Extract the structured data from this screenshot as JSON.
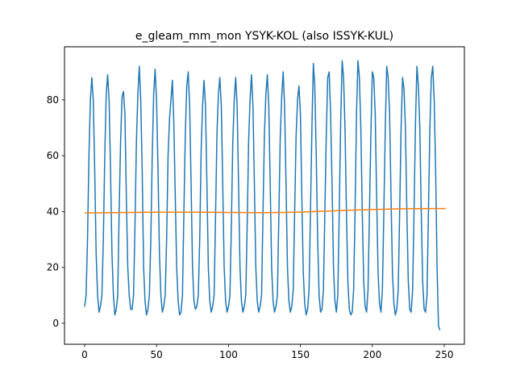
{
  "chart_data": {
    "type": "line",
    "title": "e_gleam_mm_mon YSYK-KOL (also ISSYK-KUL)",
    "xlabel": "",
    "ylabel": "",
    "xlim": [
      -14,
      264
    ],
    "ylim": [
      -7.5,
      99
    ],
    "x_ticks": [
      0,
      50,
      100,
      150,
      200,
      250
    ],
    "y_ticks": [
      0,
      20,
      40,
      60,
      80
    ],
    "grid": false,
    "colors": {
      "seasonal": "#1f77b4",
      "trend": "#ff7f0e"
    },
    "series": [
      {
        "key": "seasonal",
        "x_start": 0,
        "values": [
          6,
          10,
          30,
          60,
          80,
          88,
          80,
          55,
          25,
          10,
          4,
          6,
          10,
          30,
          60,
          82,
          89,
          80,
          55,
          25,
          10,
          3,
          5,
          10,
          40,
          65,
          81,
          83,
          75,
          45,
          20,
          10,
          5,
          5,
          10,
          35,
          65,
          82,
          92,
          80,
          55,
          20,
          8,
          3,
          5,
          10,
          30,
          60,
          82,
          91,
          80,
          55,
          25,
          10,
          4,
          6,
          10,
          30,
          60,
          73,
          80,
          87,
          72,
          45,
          20,
          8,
          3,
          4,
          10,
          40,
          68,
          85,
          90,
          78,
          50,
          20,
          8,
          5,
          6,
          10,
          30,
          62,
          78,
          87,
          78,
          50,
          20,
          8,
          4,
          6,
          10,
          38,
          68,
          82,
          88,
          78,
          50,
          20,
          8,
          4,
          6,
          10,
          35,
          65,
          80,
          88,
          78,
          50,
          20,
          8,
          4,
          6,
          10,
          35,
          65,
          80,
          89,
          78,
          50,
          20,
          8,
          4,
          6,
          10,
          40,
          68,
          82,
          89,
          78,
          50,
          20,
          8,
          4,
          6,
          10,
          38,
          67,
          81,
          90,
          78,
          50,
          20,
          8,
          4,
          6,
          12,
          40,
          67,
          80,
          85,
          75,
          45,
          18,
          7,
          3,
          5,
          12,
          40,
          70,
          93,
          85,
          60,
          30,
          10,
          4,
          5,
          12,
          40,
          68,
          88,
          90,
          75,
          50,
          20,
          8,
          4,
          10,
          40,
          72,
          94,
          88,
          70,
          40,
          15,
          5,
          3,
          4,
          12,
          40,
          75,
          94,
          88,
          70,
          40,
          15,
          6,
          4,
          12,
          40,
          68,
          90,
          88,
          75,
          45,
          18,
          7,
          4,
          12,
          40,
          70,
          92,
          88,
          75,
          45,
          18,
          7,
          3,
          5,
          12,
          40,
          70,
          88,
          84,
          70,
          40,
          15,
          5,
          4,
          12,
          40,
          72,
          92,
          85,
          70,
          40,
          15,
          5,
          4,
          10,
          40,
          70,
          88,
          92,
          80,
          55,
          20,
          -1,
          -2.5
        ]
      },
      {
        "key": "trend",
        "x": [
          0,
          20,
          50,
          75,
          100,
          125,
          140,
          150,
          160,
          175,
          190,
          205,
          220,
          240,
          251
        ],
        "values": [
          39.5,
          39.6,
          39.8,
          39.8,
          39.7,
          39.6,
          39.7,
          39.8,
          40.0,
          40.3,
          40.6,
          40.8,
          41.0,
          41.1,
          41.1
        ]
      }
    ]
  }
}
